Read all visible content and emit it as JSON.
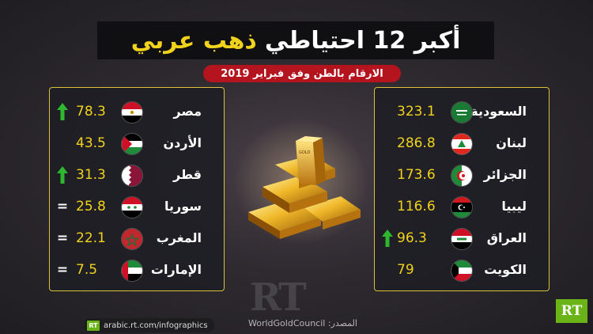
{
  "header": {
    "title_part1": "أكبر 12 احتياطي",
    "title_part2": "ذهب عربي",
    "subtitle": "الارقام بالطن وفق فبراير 2019"
  },
  "chart_data": {
    "type": "table",
    "title": "أكبر 12 احتياطي ذهب عربي",
    "subtitle": "الارقام بالطن وفق فبراير 2019",
    "right_panel": [
      {
        "country": "السعودية",
        "value": "323.1",
        "trend": "none",
        "flag": "saudi"
      },
      {
        "country": "لبنان",
        "value": "286.8",
        "trend": "none",
        "flag": "lebanon"
      },
      {
        "country": "الجزائر",
        "value": "173.6",
        "trend": "none",
        "flag": "algeria"
      },
      {
        "country": "ليبيا",
        "value": "116.6",
        "trend": "none",
        "flag": "libya"
      },
      {
        "country": "العراق",
        "value": "96.3",
        "trend": "up",
        "flag": "iraq"
      },
      {
        "country": "الكويت",
        "value": "79",
        "trend": "none",
        "flag": "kuwait"
      }
    ],
    "left_panel": [
      {
        "country": "مصر",
        "value": "78.3",
        "trend": "up",
        "flag": "egypt"
      },
      {
        "country": "الأردن",
        "value": "43.5",
        "trend": "none",
        "flag": "jordan"
      },
      {
        "country": "قطر",
        "value": "31.3",
        "trend": "up",
        "flag": "qatar"
      },
      {
        "country": "سوريا",
        "value": "25.8",
        "trend": "equal",
        "flag": "syria"
      },
      {
        "country": "المغرب",
        "value": "22.1",
        "trend": "equal",
        "flag": "morocco"
      },
      {
        "country": "الإمارات",
        "value": "7.5",
        "trend": "equal",
        "flag": "uae"
      }
    ]
  },
  "footer": {
    "source": "المصدر: WorldGoldCouncil",
    "website": "arabic.rt.com/infographics",
    "logo_text": "RT",
    "watermark": "RT"
  },
  "colors": {
    "accent_gold": "#f2d31b",
    "subtitle_red": "#b3141e",
    "trend_up": "#2fb82f",
    "rt_green": "#6ab417"
  },
  "icons": {
    "up": "up-arrow-icon",
    "equal": "equal-sign-icon"
  }
}
